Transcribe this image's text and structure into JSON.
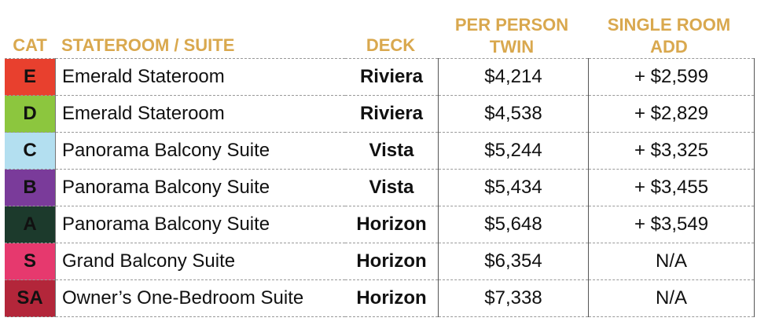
{
  "headers": {
    "cat": "CAT",
    "stateroom": "STATEROOM / SUITE",
    "deck": "DECK",
    "per_person": "PER PERSON",
    "twin": "TWIN",
    "single_room": "SINGLE ROOM",
    "add": "ADD"
  },
  "colors": {
    "header_text": "#d9a84e"
  },
  "rows": [
    {
      "cat": "E",
      "cat_color": "#e8402e",
      "room": "Emerald Stateroom",
      "deck": "Riviera",
      "twin": "$4,214",
      "single": "+ $2,599"
    },
    {
      "cat": "D",
      "cat_color": "#8cc63e",
      "room": "Emerald Stateroom",
      "deck": "Riviera",
      "twin": "$4,538",
      "single": "+ $2,829"
    },
    {
      "cat": "C",
      "cat_color": "#b3dff0",
      "room": "Panorama Balcony Suite",
      "deck": "Vista",
      "twin": "$5,244",
      "single": "+ $3,325"
    },
    {
      "cat": "B",
      "cat_color": "#7a3b9a",
      "room": "Panorama Balcony Suite",
      "deck": "Vista",
      "twin": "$5,434",
      "single": "+ $3,455"
    },
    {
      "cat": "A",
      "cat_color": "#1c3a2c",
      "room": "Panorama Balcony Suite",
      "deck": "Horizon",
      "twin": "$5,648",
      "single": "+ $3,549"
    },
    {
      "cat": "S",
      "cat_color": "#e6396e",
      "room": "Grand Balcony Suite",
      "deck": "Horizon",
      "twin": "$6,354",
      "single": "N/A"
    },
    {
      "cat": "SA",
      "cat_color": "#b3263a",
      "room": "Owner’s One-Bedroom Suite",
      "deck": "Horizon",
      "twin": "$7,338",
      "single": "N/A"
    }
  ]
}
